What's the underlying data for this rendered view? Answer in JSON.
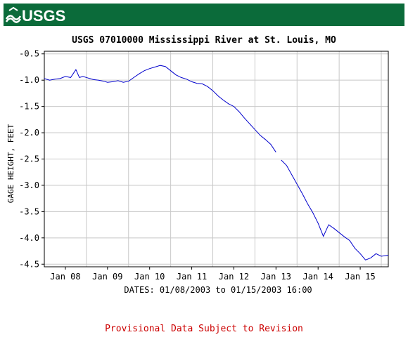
{
  "header": {
    "logo_text": "USGS",
    "colors": {
      "banner": "#0b6b3a",
      "logo_text": "#ffffff"
    }
  },
  "notice": {
    "text": "Provisional Data Subject to Revision",
    "color": "#cc0000"
  },
  "chart_data": {
    "type": "line",
    "title": "USGS 07010000 Mississippi River at St. Louis, MO",
    "ylabel": "GAGE HEIGHT, FEET",
    "xlabel": "DATES: 01/08/2003 to 01/15/2003 16:00",
    "ylim": [
      -4.55,
      -0.45
    ],
    "xlim": [
      "2003-01-07 12:00",
      "2003-01-15 16:00"
    ],
    "y_ticks": [
      -0.5,
      -1.0,
      -1.5,
      -2.0,
      -2.5,
      -3.0,
      -3.5,
      -4.0,
      -4.5
    ],
    "y_tick_labels": [
      "-0.5",
      "-1.0",
      "-1.5",
      "-2.0",
      "-2.5",
      "-3.0",
      "-3.5",
      "-4.0",
      "-4.5"
    ],
    "x_ticks": [
      "2003-01-08",
      "2003-01-09",
      "2003-01-10",
      "2003-01-11",
      "2003-01-12",
      "2003-01-13",
      "2003-01-14",
      "2003-01-15"
    ],
    "x_tick_labels": [
      "Jan 08",
      "Jan 09",
      "Jan 10",
      "Jan 11",
      "Jan 12",
      "Jan 13",
      "Jan 14",
      "Jan 15"
    ],
    "grid": true,
    "line_color": "#0000cc",
    "series": [
      {
        "segments": [
          {
            "x": [
              "2003-01-07 12:00",
              "2003-01-07 15:00",
              "2003-01-07 18:00",
              "2003-01-07 21:00",
              "2003-01-08 00:00",
              "2003-01-08 03:00",
              "2003-01-08 06:00",
              "2003-01-08 08:00",
              "2003-01-08 10:00",
              "2003-01-08 13:00",
              "2003-01-08 16:00",
              "2003-01-08 19:00",
              "2003-01-08 22:00",
              "2003-01-09 00:00",
              "2003-01-09 03:00",
              "2003-01-09 06:00",
              "2003-01-09 09:00",
              "2003-01-09 12:00",
              "2003-01-09 15:00",
              "2003-01-09 18:00",
              "2003-01-09 21:00",
              "2003-01-10 00:00",
              "2003-01-10 03:00",
              "2003-01-10 06:00",
              "2003-01-10 09:00",
              "2003-01-10 12:00",
              "2003-01-10 15:00",
              "2003-01-10 18:00",
              "2003-01-10 21:00",
              "2003-01-11 00:00",
              "2003-01-11 03:00",
              "2003-01-11 06:00",
              "2003-01-11 09:00",
              "2003-01-11 12:00",
              "2003-01-11 15:00",
              "2003-01-11 18:00",
              "2003-01-11 21:00",
              "2003-01-12 00:00",
              "2003-01-12 03:00",
              "2003-01-12 06:00",
              "2003-01-12 09:00",
              "2003-01-12 12:00",
              "2003-01-12 15:00",
              "2003-01-12 18:00",
              "2003-01-12 21:00",
              "2003-01-13 00:00"
            ],
            "y": [
              -0.97,
              -1.0,
              -0.98,
              -0.97,
              -0.93,
              -0.95,
              -0.8,
              -0.95,
              -0.93,
              -0.96,
              -0.99,
              -1.0,
              -1.02,
              -1.04,
              -1.03,
              -1.01,
              -1.04,
              -1.02,
              -0.95,
              -0.88,
              -0.82,
              -0.78,
              -0.75,
              -0.72,
              -0.74,
              -0.82,
              -0.9,
              -0.95,
              -0.98,
              -1.03,
              -1.06,
              -1.07,
              -1.12,
              -1.2,
              -1.3,
              -1.38,
              -1.45,
              -1.5,
              -1.6,
              -1.72,
              -1.83,
              -1.94,
              -2.05,
              -2.13,
              -2.22,
              -2.37
            ]
          },
          {
            "x": [
              "2003-01-13 03:00",
              "2003-01-13 06:00",
              "2003-01-13 09:00",
              "2003-01-13 12:00",
              "2003-01-13 15:00",
              "2003-01-13 18:00",
              "2003-01-13 21:00",
              "2003-01-14 00:00",
              "2003-01-14 03:00",
              "2003-01-14 06:00",
              "2003-01-14 09:00",
              "2003-01-14 12:00",
              "2003-01-14 15:00",
              "2003-01-14 18:00",
              "2003-01-14 21:00",
              "2003-01-15 00:00",
              "2003-01-15 03:00",
              "2003-01-15 06:00",
              "2003-01-15 09:00",
              "2003-01-15 12:00",
              "2003-01-15 16:00"
            ],
            "y": [
              -2.52,
              -2.62,
              -2.8,
              -2.98,
              -3.16,
              -3.35,
              -3.52,
              -3.72,
              -3.97,
              -3.75,
              -3.82,
              -3.9,
              -3.98,
              -4.05,
              -4.2,
              -4.3,
              -4.42,
              -4.38,
              -4.3,
              -4.35,
              -4.33
            ]
          }
        ]
      }
    ]
  }
}
